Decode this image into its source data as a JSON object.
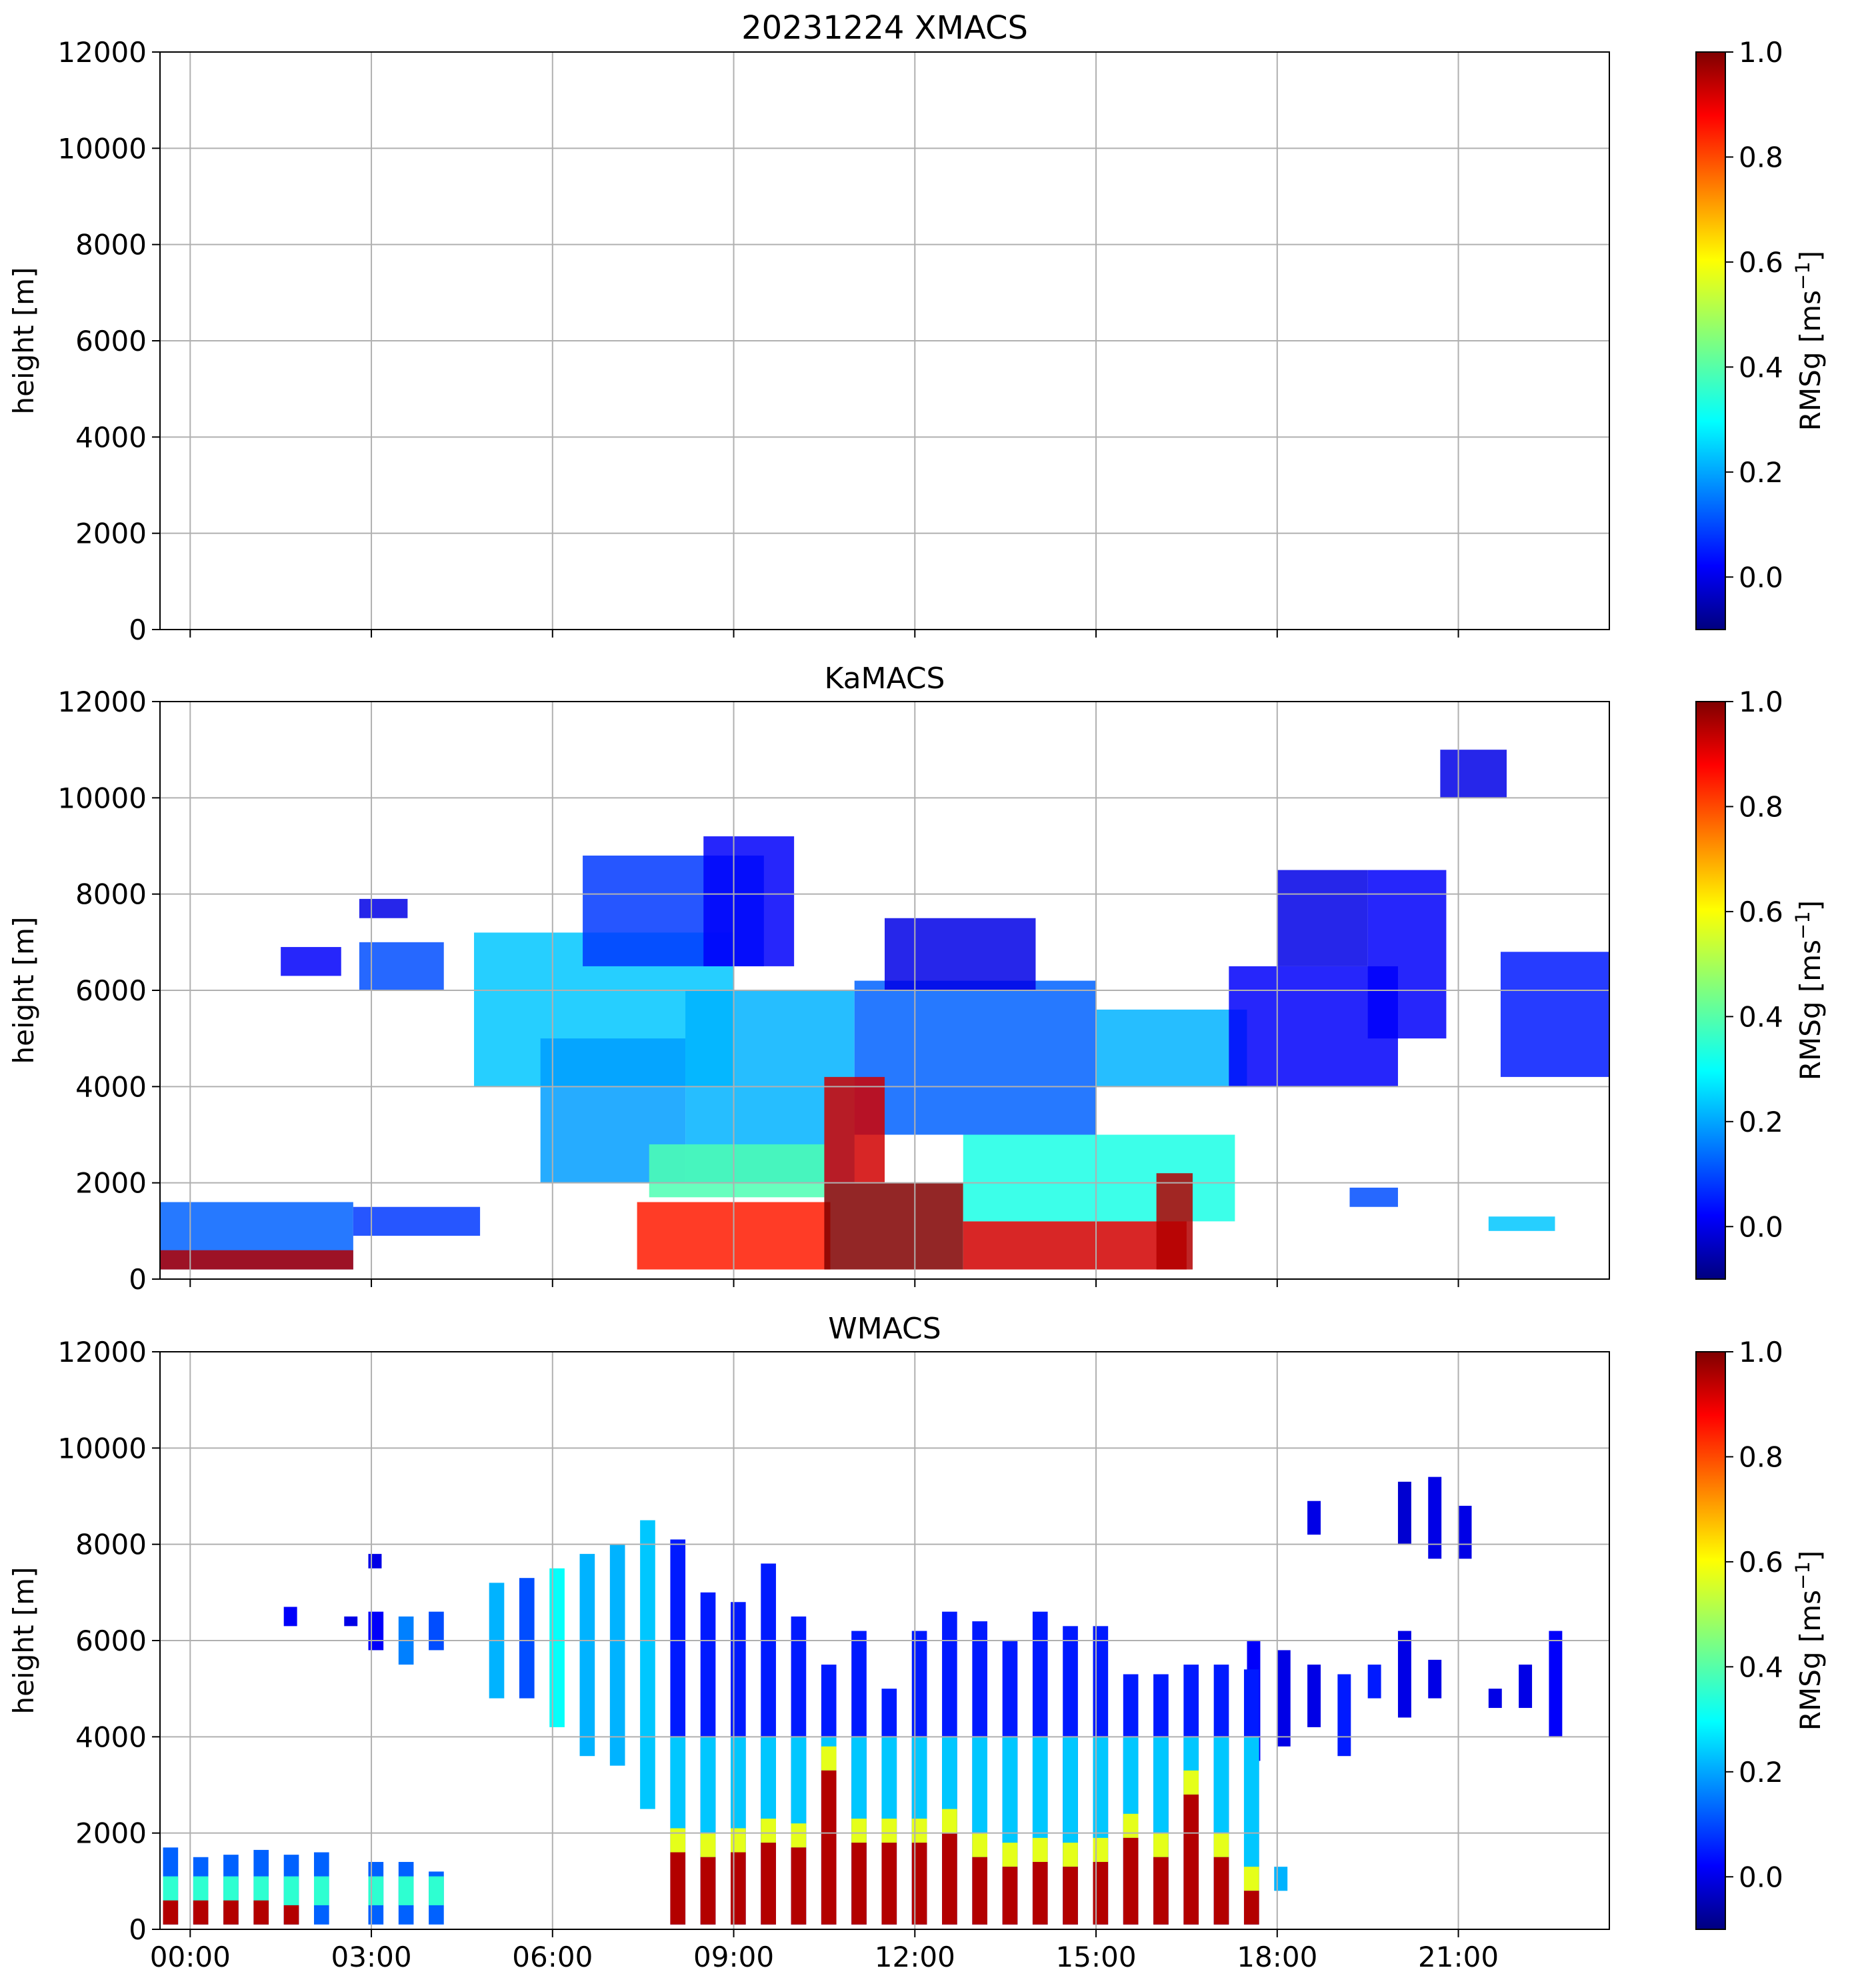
{
  "figure": {
    "colorbar_ticks": [
      "0.0",
      "0.2",
      "0.4",
      "0.6",
      "0.8",
      "1.0"
    ],
    "colorbar_tick_values": [
      0.0,
      0.2,
      0.4,
      0.6,
      0.8,
      1.0
    ],
    "colorbar_range": [
      -0.1,
      1.0
    ]
  },
  "chart_data": [
    {
      "type": "heatmap",
      "title": "20231224 XMACS",
      "xlabel": "",
      "ylabel": "height [m]",
      "clabel_base": "RMSg [ms",
      "clabel_sup": "−1",
      "clabel_end": "]",
      "colormap": "jet",
      "xlim": [
        -0.5,
        23.5
      ],
      "ylim": [
        0,
        12000
      ],
      "x_tick_values": [
        0,
        3,
        6,
        9,
        12,
        15,
        18,
        21
      ],
      "x_tick_labels": [],
      "y_tick_values": [
        0,
        2000,
        4000,
        6000,
        8000,
        10000,
        12000
      ],
      "y_tick_labels": [
        "0",
        "2000",
        "4000",
        "6000",
        "8000",
        "10000",
        "12000"
      ],
      "grid": true,
      "regions": []
    },
    {
      "type": "heatmap",
      "title": "KaMACS",
      "xlabel": "",
      "ylabel": "height [m]",
      "clabel_base": "RMSg [ms",
      "clabel_sup": "−1",
      "clabel_end": "]",
      "colormap": "jet",
      "xlim": [
        -0.5,
        23.5
      ],
      "ylim": [
        0,
        12000
      ],
      "x_tick_values": [
        0,
        3,
        6,
        9,
        12,
        15,
        18,
        21
      ],
      "x_tick_labels": [],
      "y_tick_values": [
        0,
        2000,
        4000,
        6000,
        8000,
        10000,
        12000
      ],
      "y_tick_labels": [
        "0",
        "2000",
        "4000",
        "6000",
        "8000",
        "10000",
        "12000"
      ],
      "grid": true,
      "regions": [
        {
          "x": [
            -0.5,
            2.7
          ],
          "y": [
            200,
            1600
          ],
          "v": 0.22
        },
        {
          "x": [
            -0.5,
            2.7
          ],
          "y": [
            200,
            600
          ],
          "v": 0.95
        },
        {
          "x": [
            2.7,
            4.8
          ],
          "y": [
            900,
            1500
          ],
          "v": 0.18
        },
        {
          "x": [
            1.5,
            2.5
          ],
          "y": [
            6300,
            6900
          ],
          "v": 0.12
        },
        {
          "x": [
            2.8,
            4.2
          ],
          "y": [
            6000,
            7000
          ],
          "v": 0.2
        },
        {
          "x": [
            2.8,
            3.6
          ],
          "y": [
            7500,
            7900
          ],
          "v": 0.1
        },
        {
          "x": [
            4.7,
            9.0
          ],
          "y": [
            4000,
            7200
          ],
          "v": 0.32
        },
        {
          "x": [
            6.5,
            9.5
          ],
          "y": [
            6500,
            8800
          ],
          "v": 0.18
        },
        {
          "x": [
            8.5,
            10.0
          ],
          "y": [
            6500,
            9200
          ],
          "v": 0.12
        },
        {
          "x": [
            5.8,
            8.2
          ],
          "y": [
            2000,
            5000
          ],
          "v": 0.28
        },
        {
          "x": [
            8.2,
            11.0
          ],
          "y": [
            2000,
            6000
          ],
          "v": 0.3
        },
        {
          "x": [
            11.0,
            15.0
          ],
          "y": [
            3000,
            6200
          ],
          "v": 0.22
        },
        {
          "x": [
            11.5,
            14.0
          ],
          "y": [
            6000,
            7500
          ],
          "v": 0.1
        },
        {
          "x": [
            15.0,
            17.5
          ],
          "y": [
            4000,
            5600
          ],
          "v": 0.3
        },
        {
          "x": [
            17.2,
            20.0
          ],
          "y": [
            4000,
            6500
          ],
          "v": 0.12
        },
        {
          "x": [
            18.0,
            19.5
          ],
          "y": [
            6500,
            8500
          ],
          "v": 0.1
        },
        {
          "x": [
            19.5,
            20.8
          ],
          "y": [
            5000,
            8500
          ],
          "v": 0.12
        },
        {
          "x": [
            21.7,
            23.5
          ],
          "y": [
            4200,
            6800
          ],
          "v": 0.15
        },
        {
          "x": [
            20.7,
            21.8
          ],
          "y": [
            10000,
            11000
          ],
          "v": 0.1
        },
        {
          "x": [
            7.4,
            10.6
          ],
          "y": [
            200,
            1600
          ],
          "v": 0.85
        },
        {
          "x": [
            7.6,
            10.5
          ],
          "y": [
            1700,
            2800
          ],
          "v": 0.45
        },
        {
          "x": [
            10.5,
            12.8
          ],
          "y": [
            200,
            2000
          ],
          "v": 1.0
        },
        {
          "x": [
            10.5,
            11.5
          ],
          "y": [
            2000,
            4200
          ],
          "v": 0.92
        },
        {
          "x": [
            12.8,
            16.5
          ],
          "y": [
            200,
            1200
          ],
          "v": 0.92
        },
        {
          "x": [
            12.8,
            17.3
          ],
          "y": [
            1200,
            3000
          ],
          "v": 0.4
        },
        {
          "x": [
            16.0,
            16.6
          ],
          "y": [
            200,
            2200
          ],
          "v": 0.95
        },
        {
          "x": [
            19.2,
            20.0
          ],
          "y": [
            1500,
            1900
          ],
          "v": 0.2
        },
        {
          "x": [
            21.5,
            22.6
          ],
          "y": [
            1000,
            1300
          ],
          "v": 0.32
        }
      ]
    },
    {
      "type": "heatmap",
      "title": "WMACS",
      "xlabel": "",
      "ylabel": "height [m]",
      "clabel_base": "RMSg [ms",
      "clabel_sup": "−1",
      "clabel_end": "]",
      "colormap": "jet",
      "xlim": [
        -0.5,
        23.5
      ],
      "ylim": [
        0,
        12000
      ],
      "x_tick_values": [
        0,
        3,
        6,
        9,
        12,
        15,
        18,
        21
      ],
      "x_tick_labels": [
        "00:00",
        "03:00",
        "06:00",
        "09:00",
        "12:00",
        "15:00",
        "18:00",
        "21:00"
      ],
      "y_tick_values": [
        0,
        2000,
        4000,
        6000,
        8000,
        10000,
        12000
      ],
      "y_tick_labels": [
        "0",
        "2000",
        "4000",
        "6000",
        "8000",
        "10000",
        "12000"
      ],
      "grid": true,
      "stripe_low": [
        {
          "x": -0.45,
          "top": 1700,
          "hot": 600
        },
        {
          "x": 0.05,
          "top": 1500,
          "hot": 600
        },
        {
          "x": 0.55,
          "top": 1550,
          "hot": 600
        },
        {
          "x": 1.05,
          "top": 1650,
          "hot": 600
        },
        {
          "x": 1.55,
          "top": 1550,
          "hot": 500
        },
        {
          "x": 2.05,
          "top": 1600,
          "hot": 0
        },
        {
          "x": 2.95,
          "top": 1400,
          "hot": 0
        },
        {
          "x": 3.45,
          "top": 1400,
          "hot": 0
        },
        {
          "x": 3.95,
          "top": 1200,
          "hot": 0
        }
      ],
      "stripe_high": [
        {
          "x": 2.95,
          "bot": 5800,
          "top": 6600,
          "v": 0.12
        },
        {
          "x": 3.45,
          "bot": 5500,
          "top": 6500,
          "v": 0.25
        },
        {
          "x": 3.95,
          "bot": 5800,
          "top": 6600,
          "v": 0.2
        },
        {
          "x": 4.95,
          "bot": 4800,
          "top": 7200,
          "v": 0.3
        },
        {
          "x": 5.45,
          "bot": 4800,
          "top": 7300,
          "v": 0.2
        },
        {
          "x": 5.95,
          "bot": 4200,
          "top": 7500,
          "v": 0.38
        },
        {
          "x": 6.45,
          "bot": 3600,
          "top": 7800,
          "v": 0.3
        },
        {
          "x": 6.95,
          "bot": 3400,
          "top": 8000,
          "v": 0.3
        },
        {
          "x": 7.45,
          "bot": 2500,
          "top": 8500,
          "v": 0.32
        }
      ],
      "stripe_full": [
        {
          "x": 7.95,
          "top": 8100,
          "hot": 1600
        },
        {
          "x": 8.45,
          "top": 7000,
          "hot": 1500
        },
        {
          "x": 8.95,
          "top": 6800,
          "hot": 1600
        },
        {
          "x": 9.45,
          "top": 7600,
          "hot": 1800
        },
        {
          "x": 9.95,
          "top": 6500,
          "hot": 1700
        },
        {
          "x": 10.45,
          "top": 5500,
          "hot": 3300
        },
        {
          "x": 10.95,
          "top": 6200,
          "hot": 1800
        },
        {
          "x": 11.45,
          "top": 5000,
          "hot": 1800
        },
        {
          "x": 11.95,
          "top": 6200,
          "hot": 1800
        },
        {
          "x": 12.45,
          "top": 6600,
          "hot": 2000
        },
        {
          "x": 12.95,
          "top": 6400,
          "hot": 1500
        },
        {
          "x": 13.45,
          "top": 6000,
          "hot": 1300
        },
        {
          "x": 13.95,
          "top": 6600,
          "hot": 1400
        },
        {
          "x": 14.45,
          "top": 6300,
          "hot": 1300
        },
        {
          "x": 14.95,
          "top": 6300,
          "hot": 1400
        },
        {
          "x": 15.45,
          "top": 5300,
          "hot": 1900
        },
        {
          "x": 15.95,
          "top": 5300,
          "hot": 1500
        },
        {
          "x": 16.45,
          "top": 5500,
          "hot": 2800
        },
        {
          "x": 16.95,
          "top": 5500,
          "hot": 1500
        },
        {
          "x": 17.45,
          "top": 5400,
          "hot": 800
        }
      ],
      "regions": [
        {
          "x": 17.5,
          "bot": 3500,
          "top": 6000,
          "v": 0.12
        },
        {
          "x": 18.0,
          "bot": 3800,
          "top": 5800,
          "v": 0.1
        },
        {
          "x": 18.5,
          "bot": 4200,
          "top": 5500,
          "v": 0.1
        },
        {
          "x": 19.0,
          "bot": 3600,
          "top": 5300,
          "v": 0.15
        },
        {
          "x": 19.5,
          "bot": 4800,
          "top": 5500,
          "v": 0.15
        },
        {
          "x": 20.0,
          "bot": 4400,
          "top": 6200,
          "v": 0.1
        },
        {
          "x": 20.5,
          "bot": 4800,
          "top": 5600,
          "v": 0.1
        },
        {
          "x": 21.5,
          "bot": 4600,
          "top": 5000,
          "v": 0.1
        },
        {
          "x": 22.0,
          "bot": 4600,
          "top": 5500,
          "v": 0.1
        },
        {
          "x": 22.5,
          "bot": 4000,
          "top": 6200,
          "v": 0.12
        },
        {
          "x": 20.0,
          "bot": 8000,
          "top": 9300,
          "v": 0.08
        },
        {
          "x": 20.5,
          "bot": 7700,
          "top": 9400,
          "v": 0.1
        },
        {
          "x": 21.0,
          "bot": 7700,
          "top": 8800,
          "v": 0.1
        },
        {
          "x": 18.5,
          "bot": 8200,
          "top": 8900,
          "v": 0.1
        },
        {
          "x": 1.55,
          "bot": 6300,
          "top": 6700,
          "v": 0.12
        },
        {
          "x": 2.55,
          "bot": 6300,
          "top": 6500,
          "v": 0.1
        },
        {
          "x": 2.95,
          "bot": 7500,
          "top": 7800,
          "v": 0.1
        },
        {
          "x": 17.95,
          "bot": 800,
          "top": 1300,
          "v": 0.3
        }
      ]
    }
  ]
}
